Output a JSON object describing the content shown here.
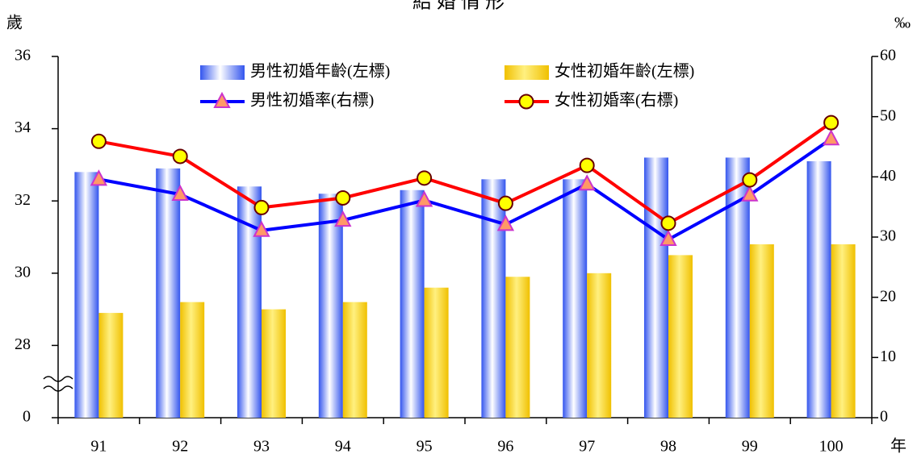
{
  "chart_data": {
    "type": "bar_line",
    "title": "結 婚 情 形",
    "y_label": "歲",
    "y2_label": "‰",
    "x_label": "年",
    "categories": [
      "91",
      "92",
      "93",
      "94",
      "95",
      "96",
      "97",
      "98",
      "99",
      "100"
    ],
    "series": [
      {
        "name": "男性初婚年齡(左標)",
        "type": "bar",
        "color": "#3355ee",
        "values": [
          32.8,
          32.9,
          32.4,
          32.2,
          32.3,
          32.6,
          32.6,
          33.2,
          33.2,
          33.1
        ]
      },
      {
        "name": "女性初婚年齡(左標)",
        "type": "bar",
        "color": "#f0c000",
        "values": [
          28.9,
          29.2,
          29.0,
          29.2,
          29.6,
          29.9,
          30.0,
          30.5,
          30.8,
          30.8
        ]
      },
      {
        "name": "男性初婚率(右標)",
        "type": "line",
        "axis": "y2",
        "color": "#0000ff",
        "marker": "triangle",
        "values": [
          39.6,
          37.1,
          31.1,
          32.8,
          36.1,
          32.1,
          38.8,
          29.6,
          37.0,
          46.3
        ]
      },
      {
        "name": "女性初婚率(右標)",
        "type": "line",
        "axis": "y2",
        "color": "#ff0000",
        "marker": "circle",
        "values": [
          45.9,
          43.4,
          34.9,
          36.5,
          39.8,
          35.6,
          41.9,
          32.3,
          39.5,
          49.0
        ]
      }
    ],
    "ylim": [
      0,
      36
    ],
    "yticks": [
      0,
      28,
      30,
      32,
      34,
      36
    ],
    "y_break": [
      0,
      26
    ],
    "y2lim": [
      0,
      60
    ],
    "y2ticks": [
      0,
      10,
      20,
      30,
      40,
      50,
      60
    ],
    "grid": false
  }
}
